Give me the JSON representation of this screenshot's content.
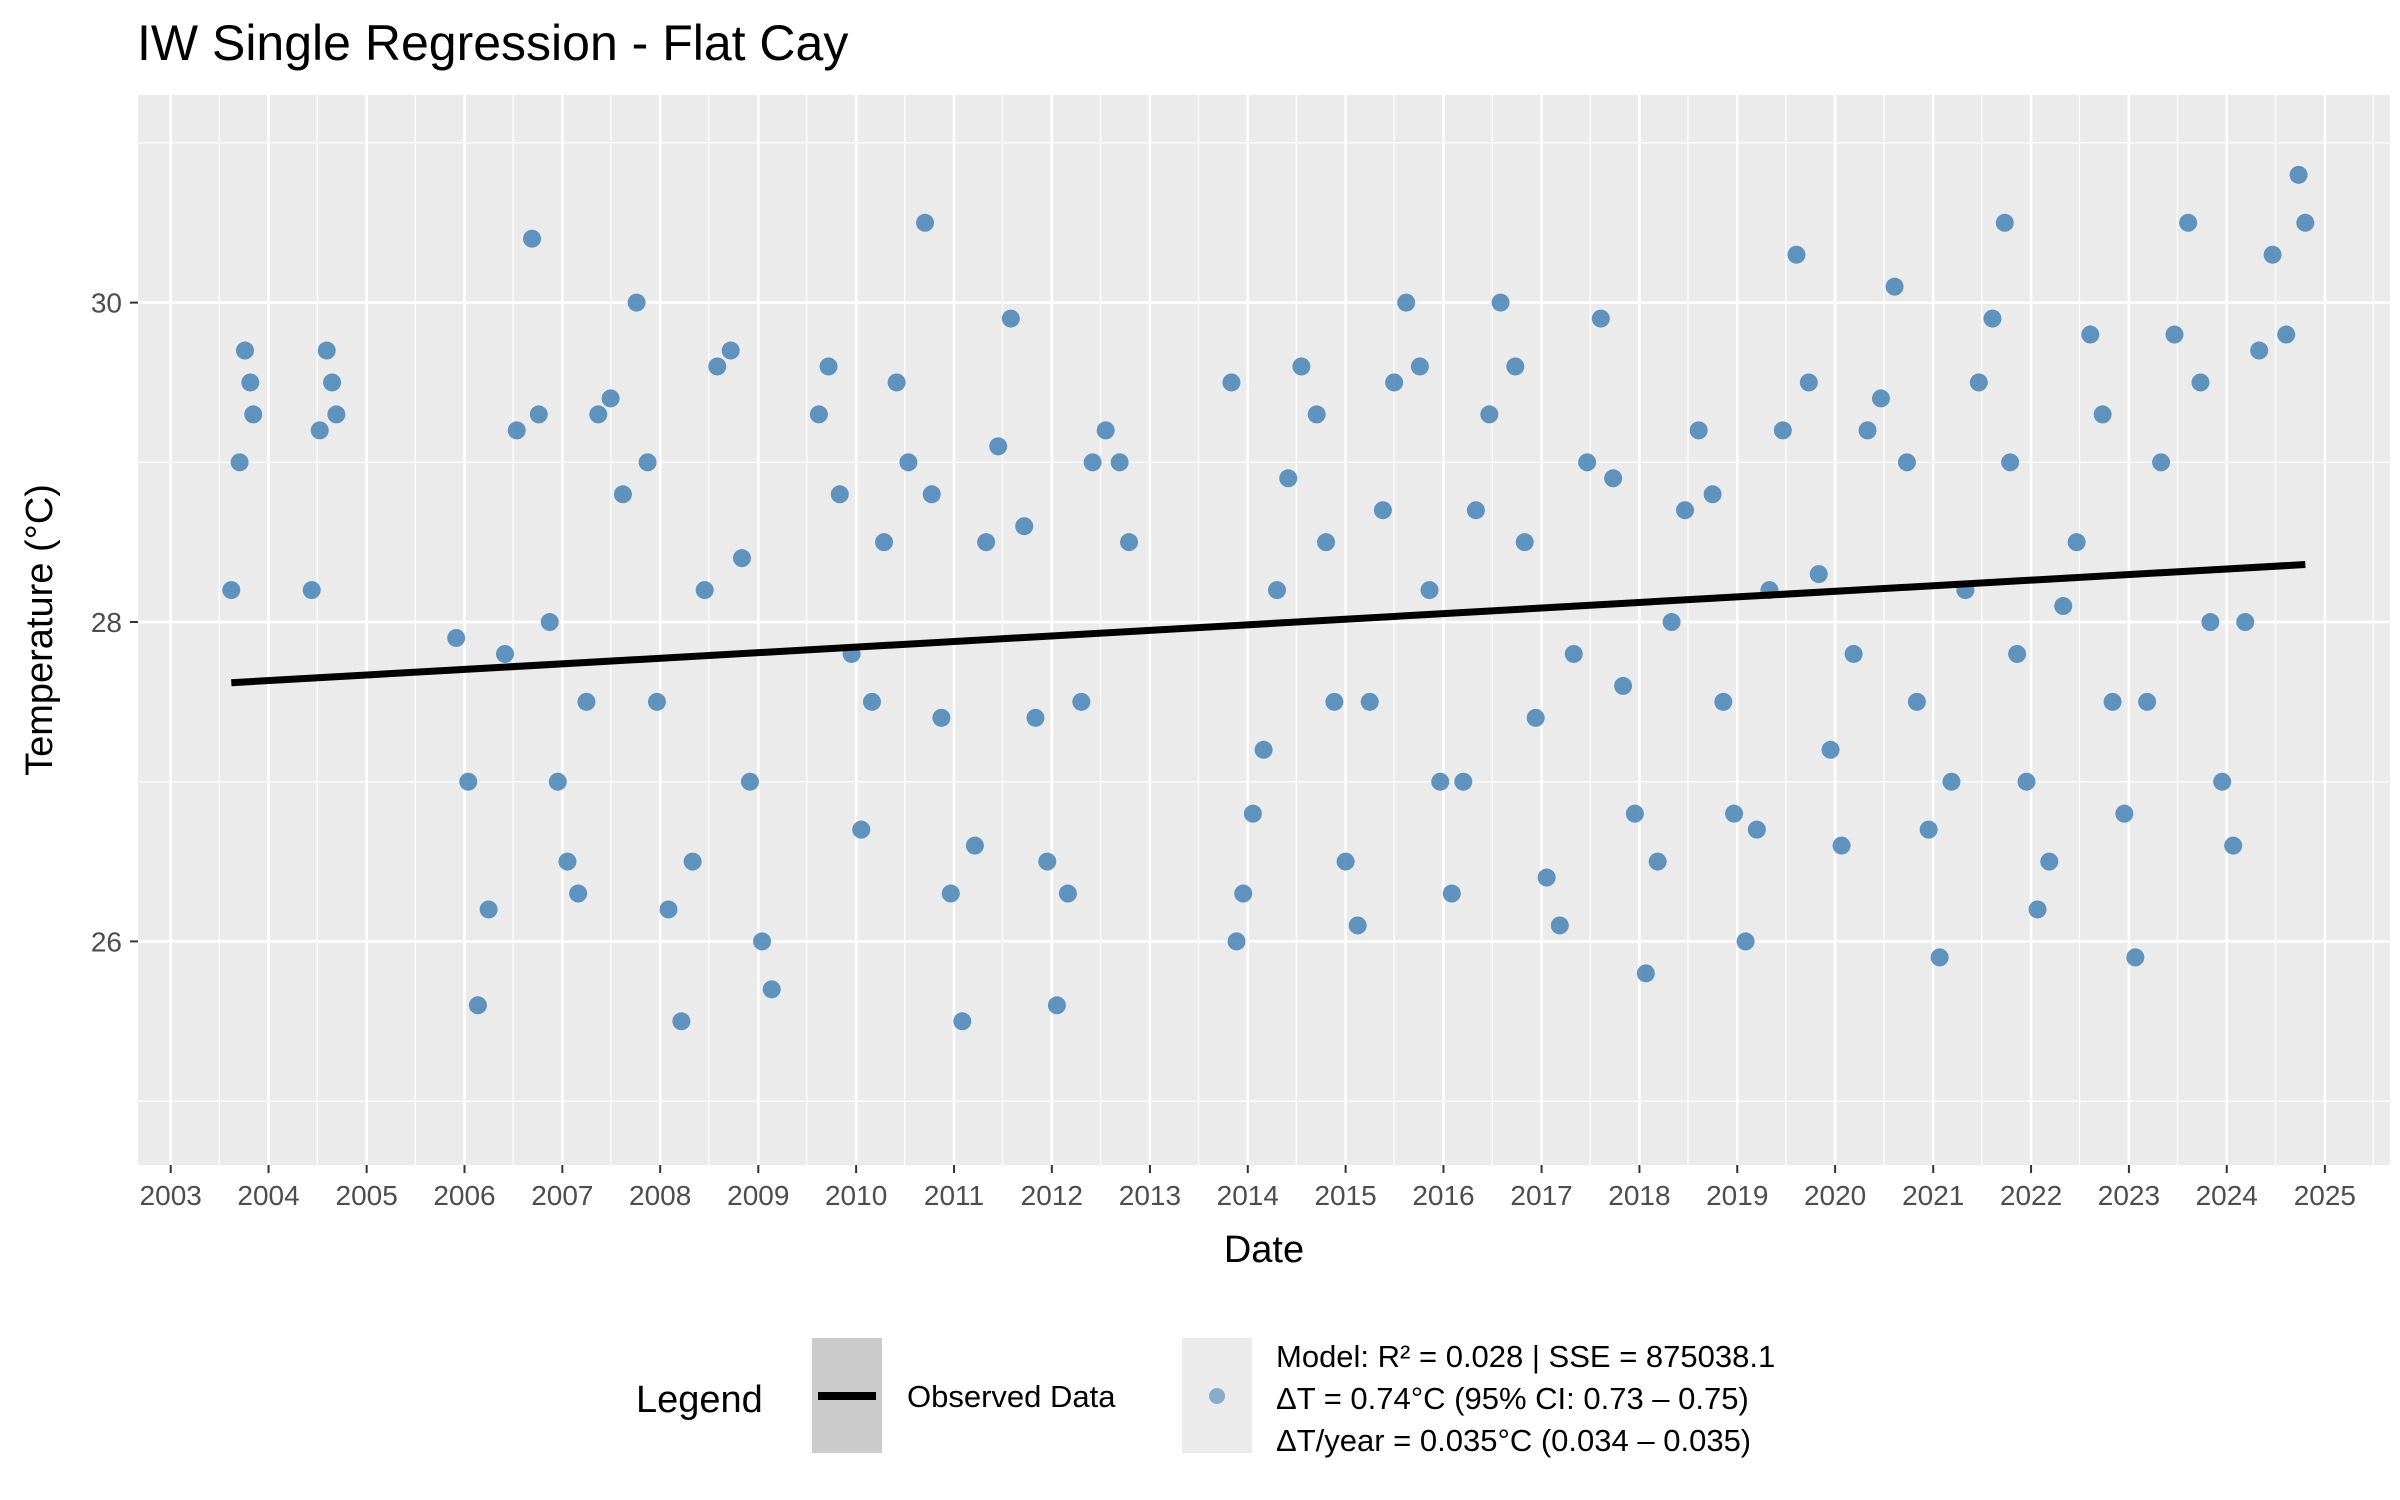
{
  "chart_data": {
    "type": "scatter",
    "title": "IW Single Regression - Flat Cay",
    "xlabel": "Date",
    "ylabel": "Temperature (°C)",
    "xlim": [
      "2002-09-01",
      "2025-09-01"
    ],
    "ylim": [
      24.6,
      31.3
    ],
    "x_ticks": [
      "2003",
      "2004",
      "2005",
      "2006",
      "2007",
      "2008",
      "2009",
      "2010",
      "2011",
      "2012",
      "2013",
      "2014",
      "2015",
      "2016",
      "2017",
      "2018",
      "2019",
      "2020",
      "2021",
      "2022",
      "2023",
      "2024",
      "2025"
    ],
    "y_ticks": [
      26,
      28,
      30
    ],
    "grid": true,
    "legend_position": "bottom",
    "colors": {
      "points": "#4682b4",
      "fit": "#000000",
      "panel": "#ebebeb",
      "grid": "#ffffff"
    },
    "series": [
      {
        "type": "scatter",
        "x": [
          "2003-08-15",
          "2003-09-15",
          "2003-10-05",
          "2003-10-25",
          "2003-11-05",
          "2004-06-10",
          "2004-07-10",
          "2004-08-05",
          "2004-08-25",
          "2004-09-10",
          "2005-12-01",
          "2006-01-15",
          "2006-02-20",
          "2006-04-01",
          "2006-06-01",
          "2006-07-15",
          "2006-09-10",
          "2006-10-05",
          "2006-11-15",
          "2006-12-15",
          "2007-01-20",
          "2007-03-01",
          "2007-04-01",
          "2007-05-15",
          "2007-06-30",
          "2007-08-15",
          "2007-10-05",
          "2007-11-15",
          "2007-12-20",
          "2008-02-01",
          "2008-03-20",
          "2008-05-01",
          "2008-06-15",
          "2008-08-01",
          "2008-09-20",
          "2008-11-01",
          "2008-12-01",
          "2009-01-15",
          "2009-02-20",
          "2009-08-15",
          "2009-09-20",
          "2009-11-01",
          "2009-12-15",
          "2010-01-20",
          "2010-03-01",
          "2010-04-15",
          "2010-06-01",
          "2010-07-15",
          "2010-09-15",
          "2010-10-10",
          "2010-11-15",
          "2010-12-20",
          "2011-02-01",
          "2011-03-20",
          "2011-05-01",
          "2011-06-15",
          "2011-08-01",
          "2011-09-20",
          "2011-11-01",
          "2011-12-15",
          "2012-01-20",
          "2012-03-01",
          "2012-04-20",
          "2012-06-01",
          "2012-07-20",
          "2012-09-10",
          "2012-10-15",
          "2013-11-01",
          "2013-11-20",
          "2013-12-15",
          "2014-01-20",
          "2014-03-01",
          "2014-04-20",
          "2014-06-01",
          "2014-07-20",
          "2014-09-15",
          "2014-10-20",
          "2014-11-20",
          "2015-01-01",
          "2015-02-15",
          "2015-04-01",
          "2015-05-20",
          "2015-07-01",
          "2015-08-15",
          "2015-10-05",
          "2015-11-10",
          "2015-12-20",
          "2016-02-01",
          "2016-03-15",
          "2016-05-01",
          "2016-06-20",
          "2016-08-01",
          "2016-09-25",
          "2016-10-30",
          "2016-12-10",
          "2017-01-20",
          "2017-03-10",
          "2017-05-01",
          "2017-06-20",
          "2017-08-10",
          "2017-09-25",
          "2017-11-01",
          "2017-12-15",
          "2018-01-25",
          "2018-03-10",
          "2018-05-01",
          "2018-06-20",
          "2018-08-10",
          "2018-10-01",
          "2018-11-10",
          "2018-12-20",
          "2019-02-01",
          "2019-03-15",
          "2019-05-01",
          "2019-06-20",
          "2019-08-10",
          "2019-09-25",
          "2019-11-01",
          "2019-12-15",
          "2020-01-25",
          "2020-03-10",
          "2020-05-01",
          "2020-06-20",
          "2020-08-10",
          "2020-09-25",
          "2020-11-01",
          "2020-12-15",
          "2021-01-25",
          "2021-03-10",
          "2021-05-01",
          "2021-06-20",
          "2021-08-10",
          "2021-09-25",
          "2021-10-15",
          "2021-11-10",
          "2021-12-15",
          "2022-01-25",
          "2022-03-10",
          "2022-05-01",
          "2022-06-20",
          "2022-08-10",
          "2022-09-25",
          "2022-11-01",
          "2022-12-15",
          "2023-01-25",
          "2023-03-10",
          "2023-05-01",
          "2023-06-20",
          "2023-08-10",
          "2023-09-25",
          "2023-11-01",
          "2023-12-15",
          "2024-01-25",
          "2024-03-10",
          "2024-05-01",
          "2024-06-20",
          "2024-08-10",
          "2024-09-25",
          "2024-10-20"
        ],
        "y": [
          28.2,
          29.0,
          29.7,
          29.5,
          29.3,
          28.2,
          29.2,
          29.7,
          29.5,
          29.3,
          27.9,
          27.0,
          25.6,
          26.2,
          27.8,
          29.2,
          30.4,
          29.3,
          28.0,
          27.0,
          26.5,
          26.3,
          27.5,
          29.3,
          29.4,
          28.8,
          30.0,
          29.0,
          27.5,
          26.2,
          25.5,
          26.5,
          28.2,
          29.6,
          29.7,
          28.4,
          27.0,
          26.0,
          25.7,
          29.3,
          29.6,
          28.8,
          27.8,
          26.7,
          27.5,
          28.5,
          29.5,
          29.0,
          30.5,
          28.8,
          27.4,
          26.3,
          25.5,
          26.6,
          28.5,
          29.1,
          29.9,
          28.6,
          27.4,
          26.5,
          25.6,
          26.3,
          27.5,
          29.0,
          29.2,
          29.0,
          28.5,
          29.5,
          26.0,
          26.3,
          26.8,
          27.2,
          28.2,
          28.9,
          29.6,
          29.3,
          28.5,
          27.5,
          26.5,
          26.1,
          27.5,
          28.7,
          29.5,
          30.0,
          29.6,
          28.2,
          27.0,
          26.3,
          27.0,
          28.7,
          29.3,
          30.0,
          29.6,
          28.5,
          27.4,
          26.4,
          26.1,
          27.8,
          29.0,
          29.9,
          28.9,
          27.6,
          26.8,
          25.8,
          26.5,
          28.0,
          28.7,
          29.2,
          28.8,
          27.5,
          26.8,
          26.0,
          26.7,
          28.2,
          29.2,
          30.3,
          29.5,
          28.3,
          27.2,
          26.6,
          27.8,
          29.2,
          29.4,
          30.1,
          29.0,
          27.5,
          26.7,
          25.9,
          27.0,
          28.2,
          29.5,
          29.9,
          30.5,
          29.0,
          27.8,
          27.0,
          26.2,
          26.5,
          28.1,
          28.5,
          29.8,
          29.3,
          27.5,
          26.8,
          25.9,
          27.5,
          29.0,
          29.8,
          30.5,
          29.5,
          28.0,
          27.0,
          26.6,
          28.0,
          29.7,
          30.3,
          29.8,
          30.8,
          30.5
        ]
      },
      {
        "type": "line",
        "x": [
          "2003-08-15",
          "2024-10-20"
        ],
        "y": [
          27.62,
          28.36
        ]
      }
    ],
    "legend": {
      "title": "Legend",
      "line_label": "Observed Data",
      "point_lines": [
        "Model: R² = 0.028 | SSE = 875038.1",
        "ΔT = 0.74°C (95% CI: 0.73 – 0.75)",
        "ΔT/year = 0.035°C (0.034 – 0.035)"
      ]
    }
  }
}
